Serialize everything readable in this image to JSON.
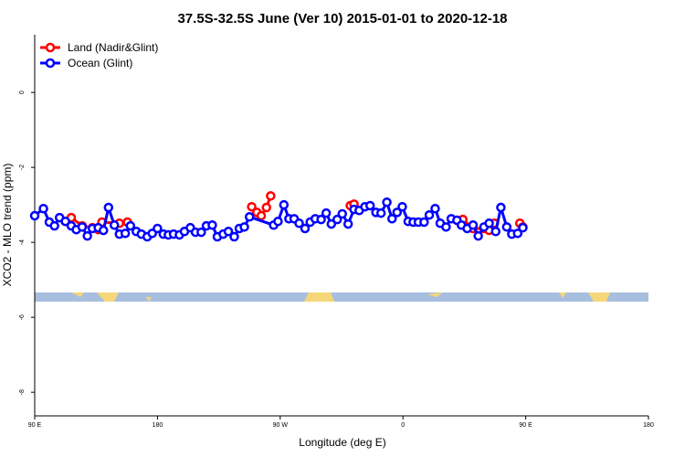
{
  "chart_data": {
    "type": "line",
    "title": "37.5S-32.5S June (Ver 10)   2015-01-01 to 2020-12-18",
    "x_label": "Longitude (deg E)",
    "y_label": "XCO2 - MLO trend (ppm)",
    "xlim": [
      90,
      540
    ],
    "ylim": [
      -8.63,
      1.54
    ],
    "xticks": [
      {
        "value": 90,
        "label": "90 E"
      },
      180,
      {
        "value": 270,
        "label": "90 W"
      },
      {
        "value": 360,
        "label": "0"
      },
      {
        "value": 450,
        "label": "90 E"
      },
      {
        "value": 540,
        "label": "180"
      }
    ],
    "yticks": [
      0,
      -2,
      -4,
      -6,
      -8
    ],
    "legend": "top-left",
    "series": [
      {
        "name": "Land (Nadir&Glint)",
        "color": "#ff0000",
        "x": [
          112.5,
          116.8,
          124.8,
          132.3,
          136.6,
          139.3,
          152.1,
          158.0,
          null,
          249.1,
          252.9,
          256.1,
          259.9,
          263.0,
          null,
          321.4,
          324.1,
          null,
          399.6,
          403.9,
          411.4,
          419.4,
          423.2,
          427.0,
          null,
          445.7,
          447.9
        ],
        "values": [
          -3.44,
          -3.34,
          -3.56,
          -3.61,
          -3.66,
          -3.46,
          -3.49,
          -3.46,
          null,
          -3.05,
          -3.2,
          -3.29,
          -3.07,
          -2.76,
          null,
          -3.02,
          -2.98,
          null,
          -3.41,
          -3.39,
          -3.63,
          -3.63,
          -3.68,
          -3.49,
          null,
          -3.49,
          -3.59
        ]
      },
      {
        "name": "Ocean (Glint)",
        "color": "#0000ff",
        "x": [
          90,
          96.4,
          100.7,
          104.5,
          108.2,
          112.5,
          116.8,
          120.5,
          124.8,
          128.6,
          132.3,
          136.6,
          140.4,
          144.1,
          148.4,
          152.1,
          156.4,
          160.2,
          164.5,
          168.2,
          172.5,
          176.2,
          180,
          184.3,
          188,
          191.8,
          196.1,
          199.8,
          204.1,
          207.9,
          212.1,
          215.9,
          220.2,
          223.9,
          228.2,
          232,
          236.3,
          240,
          243.7,
          247.5,
          265.2,
          268.4,
          272.7,
          276.4,
          280.2,
          283.9,
          288.2,
          292,
          295.7,
          300,
          303.7,
          307.5,
          311.8,
          315.5,
          319.8,
          324.1,
          327.9,
          332.1,
          335.9,
          340.2,
          343.9,
          348.2,
          352,
          355.7,
          359.5,
          363.8,
          367.5,
          371.3,
          375.5,
          379.3,
          383.6,
          387.3,
          391.6,
          395.4,
          399.6,
          402.9,
          407.1,
          411.4,
          415.2,
          419.4,
          423.2,
          428,
          431.8,
          436.1,
          439.8,
          444.1,
          447.9
        ],
        "values": [
          -3.29,
          -3.1,
          -3.46,
          -3.56,
          -3.34,
          -3.44,
          -3.56,
          -3.66,
          -3.59,
          -3.83,
          -3.63,
          -3.61,
          -3.68,
          -3.07,
          -3.54,
          -3.78,
          -3.76,
          -3.56,
          -3.71,
          -3.78,
          -3.85,
          -3.76,
          -3.63,
          -3.78,
          -3.8,
          -3.78,
          -3.8,
          -3.71,
          -3.61,
          -3.73,
          -3.73,
          -3.56,
          -3.54,
          -3.85,
          -3.78,
          -3.71,
          -3.85,
          -3.63,
          -3.59,
          -3.32,
          -3.54,
          -3.44,
          -3.0,
          -3.37,
          -3.37,
          -3.49,
          -3.63,
          -3.46,
          -3.37,
          -3.39,
          -3.22,
          -3.51,
          -3.39,
          -3.24,
          -3.51,
          -3.12,
          -3.15,
          -3.05,
          -3.02,
          -3.2,
          -3.22,
          -2.93,
          -3.37,
          -3.2,
          -3.05,
          -3.44,
          -3.46,
          -3.46,
          -3.46,
          -3.27,
          -3.1,
          -3.49,
          -3.59,
          -3.37,
          -3.41,
          -3.54,
          -3.63,
          -3.54,
          -3.83,
          -3.59,
          -3.49,
          -3.71,
          -3.07,
          -3.59,
          -3.78,
          -3.76,
          -3.61
        ]
      }
    ]
  }
}
